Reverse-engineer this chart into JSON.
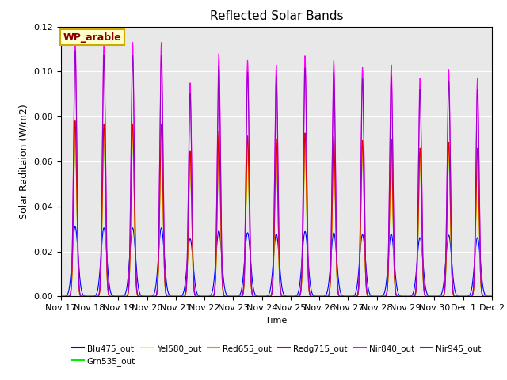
{
  "title": "Reflected Solar Bands",
  "xlabel": "Time",
  "ylabel": "Solar Raditaion (W/m2)",
  "ylim": [
    0,
    0.12
  ],
  "annotation_text": "WP_arable",
  "annotation_bg": "#ffffcc",
  "annotation_border": "#ccaa00",
  "annotation_text_color": "#880000",
  "plot_bg": "#e8e8e8",
  "fig_bg": "#ffffff",
  "series": [
    {
      "name": "Blu475_out",
      "color": "#0000ff",
      "scale": 0.27,
      "sigma": 0.1
    },
    {
      "name": "Grn535_out",
      "color": "#00ee00",
      "scale": 0.63,
      "sigma": 0.055
    },
    {
      "name": "Yel580_out",
      "color": "#ffff00",
      "scale": 0.64,
      "sigma": 0.055
    },
    {
      "name": "Red655_out",
      "color": "#ff8800",
      "scale": 0.66,
      "sigma": 0.055
    },
    {
      "name": "Redg715_out",
      "color": "#dd0000",
      "scale": 0.68,
      "sigma": 0.055
    },
    {
      "name": "Nir840_out",
      "color": "#ff00ff",
      "scale": 1.0,
      "sigma": 0.055
    },
    {
      "name": "Nir945_out",
      "color": "#9900cc",
      "scale": 0.95,
      "sigma": 0.055
    }
  ],
  "day_peaks_nir": [
    0.115,
    0.113,
    0.113,
    0.113,
    0.095,
    0.108,
    0.105,
    0.103,
    0.107,
    0.105,
    0.102,
    0.103,
    0.097,
    0.101,
    0.097
  ],
  "x_tick_labels": [
    "Nov 17",
    "Nov 18",
    "Nov 19",
    "Nov 20",
    "Nov 21",
    "Nov 22",
    "Nov 23",
    "Nov 24",
    "Nov 25",
    "Nov 26",
    "Nov 27",
    "Nov 28",
    "Nov 29",
    "Nov 30",
    "Dec 1",
    "Dec 2"
  ],
  "grid_color": "#ffffff",
  "grid_lw": 0.8
}
